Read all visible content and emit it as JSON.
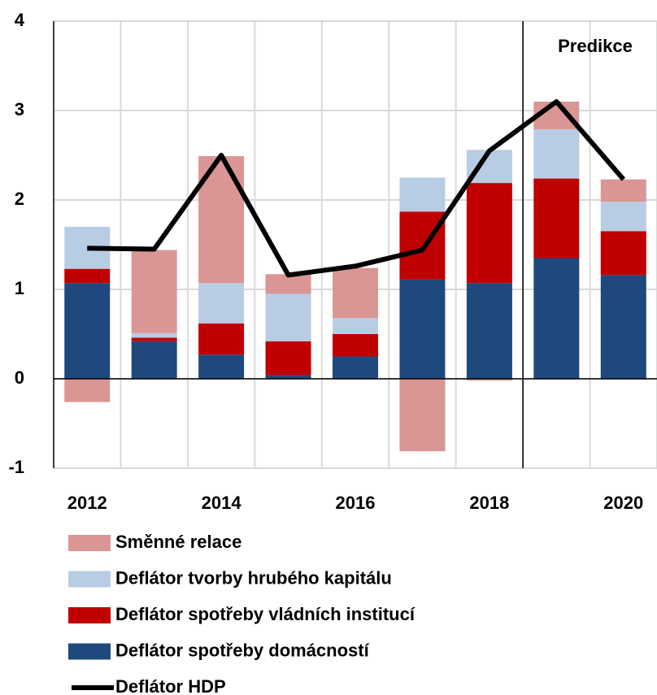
{
  "chart_data": {
    "type": "bar",
    "categories": [
      "2012",
      null,
      "2014",
      null,
      "2016",
      null,
      "2018",
      null,
      "2020"
    ],
    "annotation": "Predikce",
    "series": [
      {
        "name": "Směnné relace",
        "color": "#da9694",
        "values": [
          -0.26,
          0.93,
          1.42,
          0.22,
          0.56,
          -0.81,
          -0.02,
          0.31,
          0.25
        ]
      },
      {
        "name": "Deflátor tvorby hrubého kapitálu",
        "color": "#b8cce4",
        "values": [
          0.47,
          0.05,
          0.45,
          0.53,
          0.18,
          0.38,
          0.37,
          0.55,
          0.33
        ]
      },
      {
        "name": "Deflátor spotřeby vládních institucí",
        "color": "#c00000",
        "values": [
          0.16,
          0.04,
          0.35,
          0.38,
          0.25,
          0.76,
          1.12,
          0.89,
          0.49
        ]
      },
      {
        "name": "Deflátor spotřeby domácností",
        "color": "#1f497d",
        "values": [
          1.07,
          0.42,
          0.27,
          0.04,
          0.25,
          1.11,
          1.07,
          1.35,
          1.16
        ]
      },
      {
        "name": "Deflátor HDP",
        "type": "line",
        "color": "#000000",
        "values": [
          1.46,
          1.45,
          2.5,
          1.16,
          1.26,
          1.44,
          2.55,
          3.1,
          2.23
        ]
      }
    ],
    "ylim": [
      -1,
      4
    ],
    "yticks": [
      -1,
      0,
      1,
      2,
      3,
      4
    ],
    "grid": true
  }
}
